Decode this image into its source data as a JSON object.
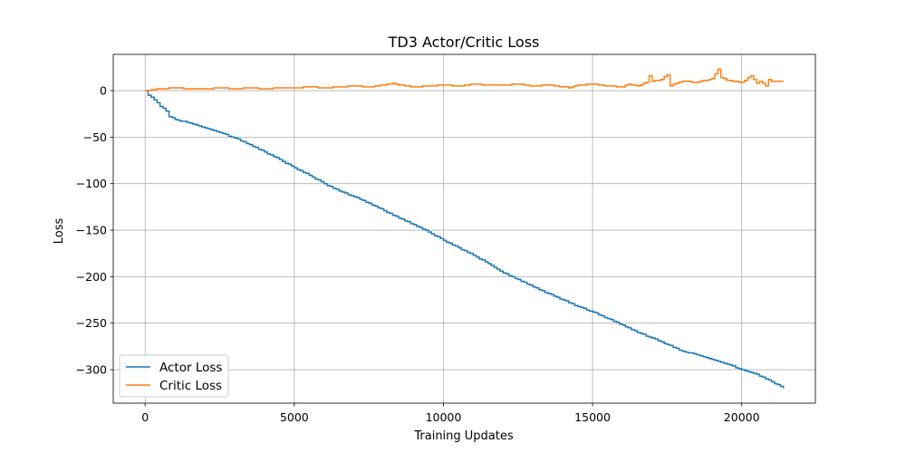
{
  "chart_data": {
    "type": "line",
    "title": "TD3 Actor/Critic Loss",
    "xlabel": "Training Updates",
    "ylabel": "Loss",
    "xlim": [
      -1070,
      22470
    ],
    "ylim": [
      -336,
      39
    ],
    "xticks": [
      0,
      5000,
      10000,
      15000,
      20000
    ],
    "yticks": [
      0,
      -50,
      -100,
      -150,
      -200,
      -250,
      -300
    ],
    "xtick_labels": [
      "0",
      "5000",
      "10000",
      "15000",
      "20000"
    ],
    "ytick_labels": [
      "0",
      "−50",
      "−100",
      "−150",
      "−200",
      "−250",
      "−300"
    ],
    "grid": true,
    "legend_position": "lower-left",
    "step_interval": 100,
    "series": [
      {
        "name": "Actor Loss",
        "color": "#1f77b4",
        "x": [
          0,
          100,
          300,
          500,
          700,
          800,
          1000,
          1500,
          2000,
          2500,
          3000,
          3500,
          4000,
          4500,
          5000,
          5500,
          6000,
          6500,
          7000,
          7500,
          8000,
          8500,
          9000,
          9500,
          10000,
          10500,
          11000,
          11500,
          12000,
          12500,
          13000,
          13500,
          14000,
          14500,
          15000,
          15500,
          16000,
          16500,
          17000,
          17500,
          18000,
          18500,
          19000,
          19500,
          20000,
          20500,
          21000,
          21400
        ],
        "y": [
          0,
          -5,
          -10,
          -17,
          -22,
          -28,
          -31,
          -35,
          -40,
          -45,
          -51,
          -58,
          -66,
          -74,
          -83,
          -91,
          -100,
          -108,
          -114,
          -121,
          -129,
          -137,
          -144,
          -152,
          -161,
          -169,
          -177,
          -186,
          -196,
          -203,
          -211,
          -218,
          -225,
          -232,
          -238,
          -245,
          -252,
          -260,
          -266,
          -273,
          -280,
          -284,
          -289,
          -294,
          -300,
          -305,
          -313,
          -320
        ]
      },
      {
        "name": "Critic Loss",
        "color": "#ff7f0e",
        "x": [
          0,
          500,
          1000,
          1500,
          2000,
          2500,
          3000,
          3500,
          4000,
          4500,
          5000,
          5500,
          6000,
          6500,
          7000,
          7500,
          8000,
          8300,
          8500,
          9000,
          9500,
          10000,
          10500,
          11000,
          11500,
          12000,
          12500,
          13000,
          13500,
          14000,
          14200,
          14500,
          15000,
          15500,
          16000,
          16200,
          16500,
          16800,
          16900,
          17000,
          17300,
          17500,
          17600,
          17800,
          18000,
          18500,
          19000,
          19100,
          19200,
          19300,
          19500,
          20000,
          20300,
          20500,
          20600,
          20800,
          20900,
          21000,
          21400
        ],
        "y": [
          0,
          2,
          3,
          2,
          2,
          3,
          2,
          3,
          2,
          3,
          3,
          4,
          3,
          4,
          5,
          4,
          6,
          8,
          6,
          4,
          5,
          6,
          5,
          7,
          6,
          6,
          7,
          5,
          6,
          4,
          3,
          6,
          7,
          5,
          4,
          7,
          5,
          9,
          16,
          10,
          12,
          17,
          5,
          8,
          10,
          9,
          13,
          18,
          23,
          14,
          11,
          9,
          16,
          8,
          10,
          5,
          12,
          10,
          10
        ]
      }
    ]
  }
}
